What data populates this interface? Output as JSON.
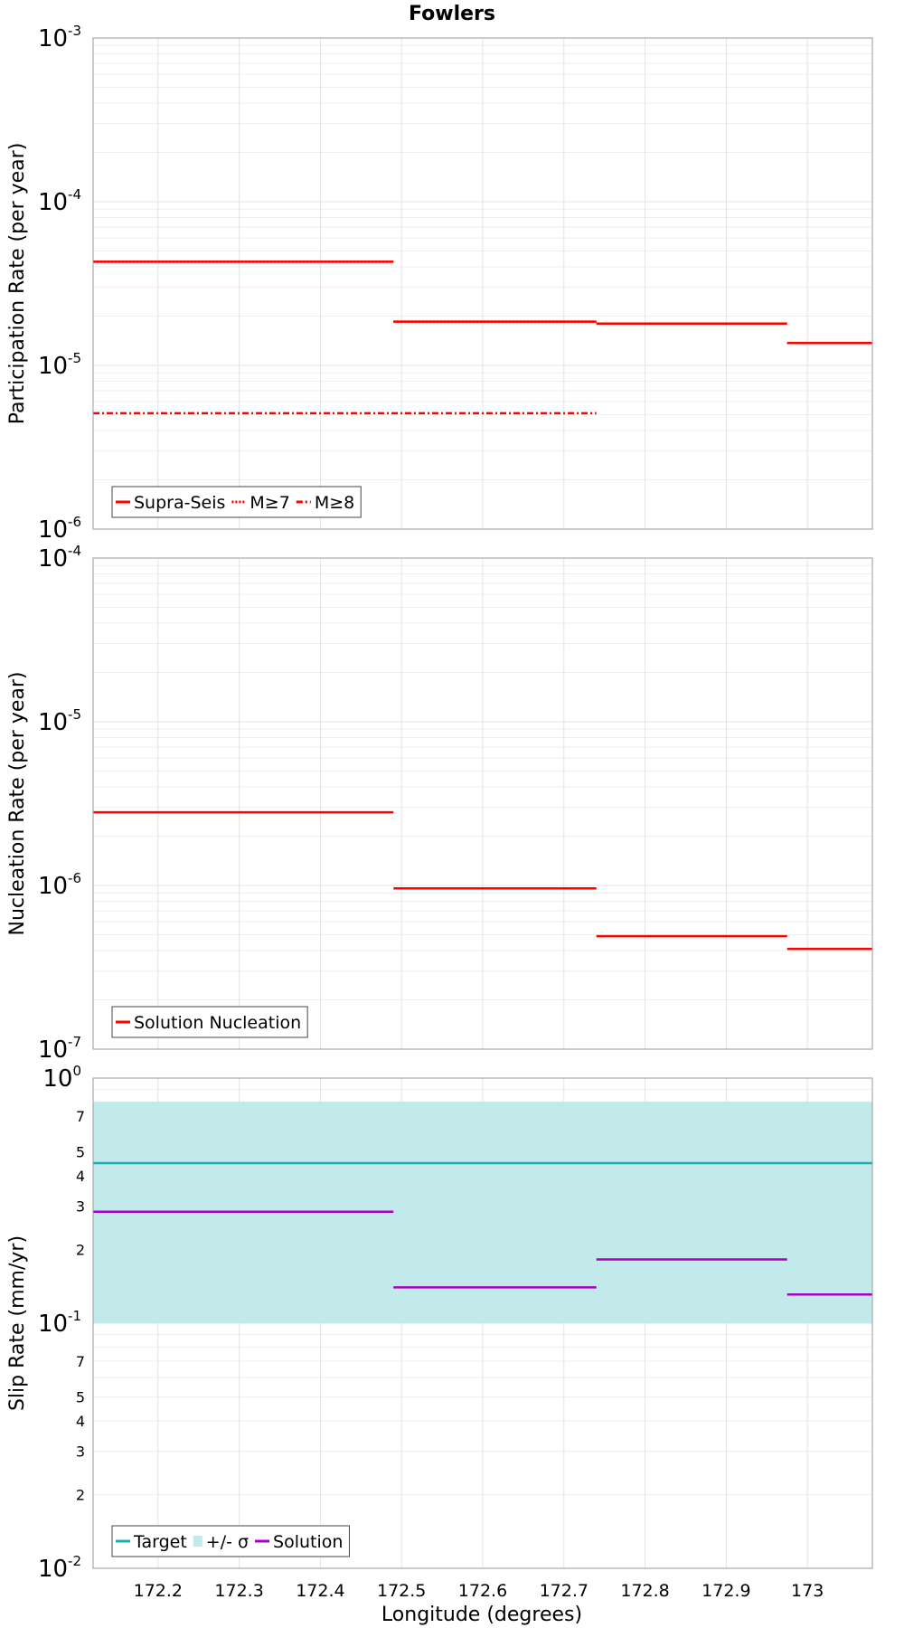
{
  "title": "Fowlers",
  "xlabel": "Longitude (degrees)",
  "colors": {
    "red": "#ff0000",
    "target": "#1aaeae",
    "band": "#c2eaea",
    "solution": "#a600c4",
    "grid": "#e3e3e3"
  },
  "chart_data": [
    {
      "type": "line",
      "name": "participation",
      "ylabel": "Participation Rate (per year)",
      "yscale": "log",
      "ylim": [
        1e-06,
        0.001
      ],
      "xlim": [
        172.12,
        173.08
      ],
      "major_ticks": [
        {
          "base": "10",
          "exp": "-6",
          "v": 1e-06
        },
        {
          "base": "10",
          "exp": "-5",
          "v": 1e-05
        },
        {
          "base": "10",
          "exp": "-4",
          "v": 0.0001
        },
        {
          "base": "10",
          "exp": "-3",
          "v": 0.001
        }
      ],
      "minor_labels": [],
      "legend": {
        "location": "bottom-left",
        "items": [
          {
            "label": "Supra-Seis",
            "color": "#ff0000",
            "style": "solid"
          },
          {
            "label": "M≥7",
            "color": "#ff0000",
            "style": "dotted"
          },
          {
            "label": "M≥8",
            "color": "#ff0000",
            "style": "dashdot"
          }
        ]
      },
      "series": [
        {
          "name": "Supra-Seis",
          "color": "#ff0000",
          "style": "solid",
          "segments": [
            {
              "x": [
                172.12,
                172.49
              ],
              "y": 4.3e-05
            },
            {
              "x": [
                172.49,
                172.74
              ],
              "y": 1.85e-05
            },
            {
              "x": [
                172.74,
                172.975
              ],
              "y": 1.8e-05
            },
            {
              "x": [
                172.975,
                173.08
              ],
              "y": 1.37e-05
            }
          ]
        },
        {
          "name": "M≥7",
          "color": "#ff0000",
          "style": "dotted",
          "segments": [
            {
              "x": [
                172.12,
                172.49
              ],
              "y": 4.3e-05
            },
            {
              "x": [
                172.49,
                172.74
              ],
              "y": 1.85e-05
            },
            {
              "x": [
                172.74,
                172.975
              ],
              "y": 1.8e-05
            },
            {
              "x": [
                172.975,
                173.08
              ],
              "y": 1.37e-05
            }
          ]
        },
        {
          "name": "M≥8",
          "color": "#ff0000",
          "style": "dashdot",
          "segments": [
            {
              "x": [
                172.12,
                172.74
              ],
              "y": 5.1e-06
            }
          ]
        }
      ]
    },
    {
      "type": "line",
      "name": "nucleation",
      "ylabel": "Nucleation Rate (per year)",
      "yscale": "log",
      "ylim": [
        1e-07,
        0.0001
      ],
      "xlim": [
        172.12,
        173.08
      ],
      "major_ticks": [
        {
          "base": "10",
          "exp": "-7",
          "v": 1e-07
        },
        {
          "base": "10",
          "exp": "-6",
          "v": 1e-06
        },
        {
          "base": "10",
          "exp": "-5",
          "v": 1e-05
        },
        {
          "base": "10",
          "exp": "-4",
          "v": 0.0001
        }
      ],
      "minor_labels": [],
      "legend": {
        "location": "bottom-left",
        "items": [
          {
            "label": "Solution Nucleation",
            "color": "#ff0000",
            "style": "solid"
          }
        ]
      },
      "series": [
        {
          "name": "Solution Nucleation",
          "color": "#ff0000",
          "style": "solid",
          "segments": [
            {
              "x": [
                172.12,
                172.49
              ],
              "y": 2.8e-06
            },
            {
              "x": [
                172.49,
                172.74
              ],
              "y": 9.6e-07
            },
            {
              "x": [
                172.74,
                172.975
              ],
              "y": 4.9e-07
            },
            {
              "x": [
                172.975,
                173.08
              ],
              "y": 4.1e-07
            }
          ]
        }
      ]
    },
    {
      "type": "line",
      "name": "slip",
      "ylabel": "Slip Rate (mm/yr)",
      "yscale": "log",
      "ylim": [
        0.01,
        1
      ],
      "xlim": [
        172.12,
        173.08
      ],
      "major_ticks": [
        {
          "base": "10",
          "exp": "-2",
          "v": 0.01
        },
        {
          "base": "10",
          "exp": "-1",
          "v": 0.1
        },
        {
          "base": "10",
          "exp": "0",
          "v": 1
        }
      ],
      "minor_labels": [
        {
          "text": "2",
          "v": 0.02
        },
        {
          "text": "3",
          "v": 0.03
        },
        {
          "text": "4",
          "v": 0.04
        },
        {
          "text": "5",
          "v": 0.05
        },
        {
          "text": "7",
          "v": 0.07
        },
        {
          "text": "2",
          "v": 0.2
        },
        {
          "text": "3",
          "v": 0.3
        },
        {
          "text": "4",
          "v": 0.4
        },
        {
          "text": "5",
          "v": 0.5
        },
        {
          "text": "7",
          "v": 0.7
        }
      ],
      "band": {
        "name": "+/- σ",
        "y": [
          0.1,
          0.8
        ],
        "color": "#c2eaea"
      },
      "legend": {
        "location": "bottom-left",
        "items": [
          {
            "label": "Target",
            "color": "#1aaeae",
            "style": "solid"
          },
          {
            "label": "+/- σ",
            "color": "#c2eaea",
            "style": "solid"
          },
          {
            "label": "Solution",
            "color": "#a600c4",
            "style": "solid"
          }
        ]
      },
      "series": [
        {
          "name": "Target",
          "color": "#1aaeae",
          "style": "solid",
          "segments": [
            {
              "x": [
                172.12,
                173.08
              ],
              "y": 0.45
            }
          ]
        },
        {
          "name": "Solution",
          "color": "#a600c4",
          "style": "solid",
          "segments": [
            {
              "x": [
                172.12,
                172.49
              ],
              "y": 0.285
            },
            {
              "x": [
                172.49,
                172.74
              ],
              "y": 0.14
            },
            {
              "x": [
                172.74,
                172.975
              ],
              "y": 0.182
            },
            {
              "x": [
                172.975,
                173.08
              ],
              "y": 0.131
            }
          ]
        }
      ]
    }
  ],
  "x_ticks": [
    {
      "label": "172.2",
      "v": 172.2
    },
    {
      "label": "172.3",
      "v": 172.3
    },
    {
      "label": "172.4",
      "v": 172.4
    },
    {
      "label": "172.5",
      "v": 172.5
    },
    {
      "label": "172.6",
      "v": 172.6
    },
    {
      "label": "172.7",
      "v": 172.7
    },
    {
      "label": "172.8",
      "v": 172.8
    },
    {
      "label": "172.9",
      "v": 172.9
    },
    {
      "label": "173",
      "v": 173.0
    }
  ]
}
